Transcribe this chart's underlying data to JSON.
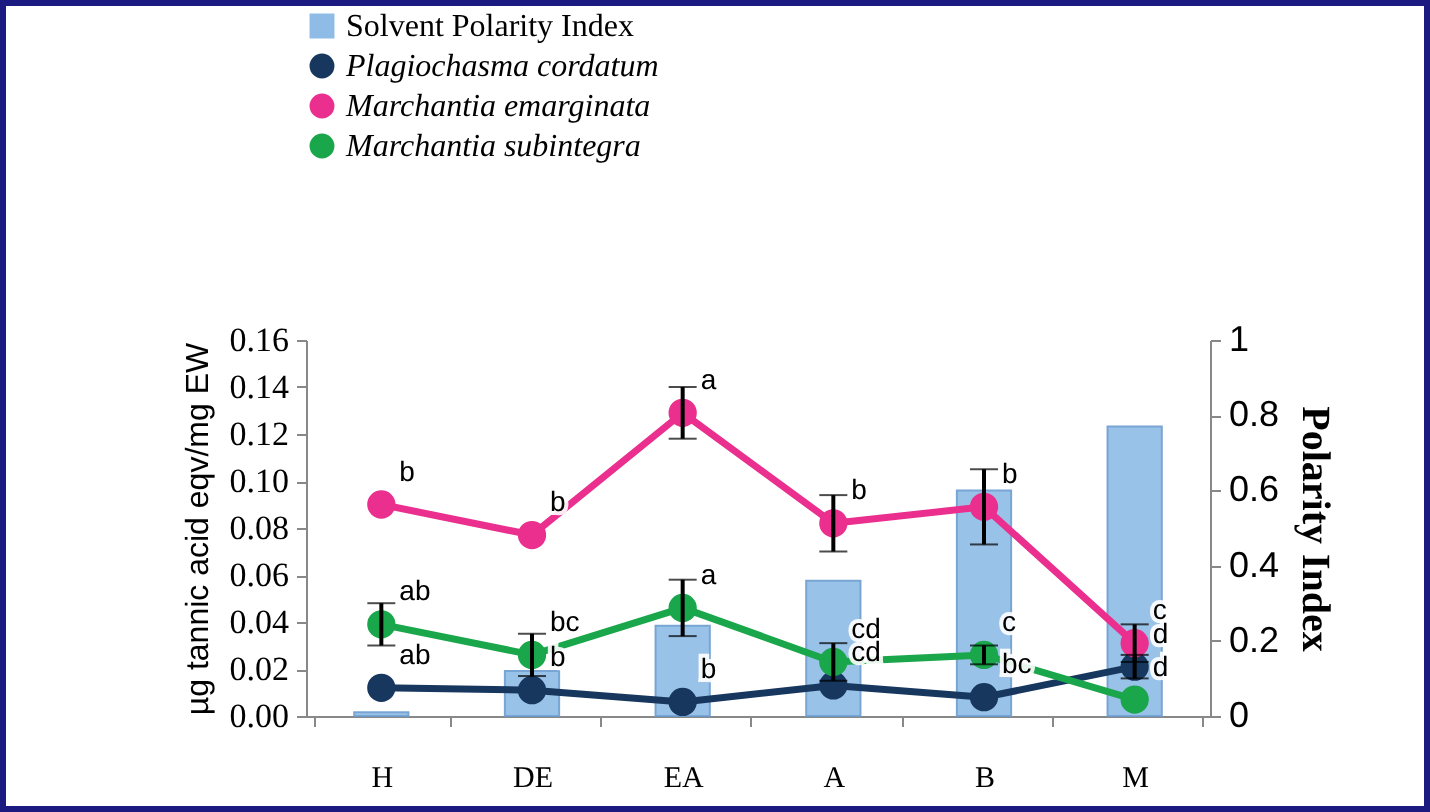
{
  "chart_data": {
    "type": "line",
    "categories": [
      "H",
      "DE",
      "EA",
      "A",
      "B",
      "M"
    ],
    "ylabel": "µg tannic acid eqv/mg EW",
    "y2label": "Polarity Index",
    "ylim": [
      0,
      0.16
    ],
    "yticks": [
      {
        "value": 0,
        "label": "0.00"
      },
      {
        "value": 0.02,
        "label": "0.02"
      },
      {
        "value": 0.04,
        "label": "0.04"
      },
      {
        "value": 0.06,
        "label": "0.06"
      },
      {
        "value": 0.08,
        "label": "0.08"
      },
      {
        "value": 0.1,
        "label": "0.10"
      },
      {
        "value": 0.12,
        "label": "0.12"
      },
      {
        "value": 0.14,
        "label": "0.14"
      },
      {
        "value": 0.16,
        "label": "0.16"
      }
    ],
    "y2lim": [
      0,
      1
    ],
    "y2ticks": [
      0,
      0.2,
      0.4,
      0.6,
      0.8,
      1
    ],
    "legend": "top left",
    "grid": false,
    "marker": "circle",
    "series": [
      {
        "name": "Solvent Polarity Index",
        "type": "bar",
        "axis": "y2",
        "color": "#8fbce6",
        "values": [
          0.01,
          0.12,
          0.24,
          0.36,
          0.6,
          0.77
        ]
      },
      {
        "name": "Plagiochasma cordatum",
        "color": "#17375e",
        "values": [
          0.012,
          0.011,
          0.006,
          0.013,
          0.008,
          0.021
        ],
        "errors": [
          null,
          null,
          null,
          null,
          null,
          0.005
        ]
      },
      {
        "name": "Marchantia emarginata",
        "color": "#ea2f8e",
        "values": [
          0.09,
          0.077,
          0.129,
          0.082,
          0.089,
          0.031
        ],
        "errors": [
          null,
          null,
          0.011,
          0.012,
          0.016,
          0.008
        ]
      },
      {
        "name": "Marchantia subintegra",
        "color": "#1aa64a",
        "values": [
          0.039,
          0.026,
          0.046,
          0.023,
          0.026,
          0.007
        ],
        "errors": [
          0.009,
          0.009,
          0.012,
          0.008,
          0.004,
          null
        ]
      }
    ],
    "annotations": [
      {
        "text": "b",
        "x": "H",
        "y": 0.09
      },
      {
        "text": "b",
        "x": "DE",
        "y": 0.077
      },
      {
        "text": "a",
        "x": "EA",
        "y": 0.129
      },
      {
        "text": "b",
        "x": "A",
        "y": 0.082
      },
      {
        "text": "b",
        "x": "B",
        "y": 0.089
      },
      {
        "text": "c",
        "x": "M",
        "y": 0.031
      },
      {
        "text": "ab",
        "x": "H",
        "y": 0.039
      },
      {
        "text": "bc",
        "x": "DE",
        "y": 0.026
      },
      {
        "text": "a",
        "x": "EA",
        "y": 0.046
      },
      {
        "text": "cd",
        "x": "A",
        "y": 0.023
      },
      {
        "text": "c",
        "x": "B",
        "y": 0.026
      },
      {
        "text": "d",
        "x": "M",
        "y": 0.007
      },
      {
        "text": "ab",
        "x": "H",
        "y": 0.012
      },
      {
        "text": "b",
        "x": "DE",
        "y": 0.011
      },
      {
        "text": "b",
        "x": "EA",
        "y": 0.006
      },
      {
        "text": "cd",
        "x": "A",
        "y": 0.013
      },
      {
        "text": "bc",
        "x": "B",
        "y": 0.008
      },
      {
        "text": "d",
        "x": "M",
        "y": 0.021
      }
    ]
  }
}
